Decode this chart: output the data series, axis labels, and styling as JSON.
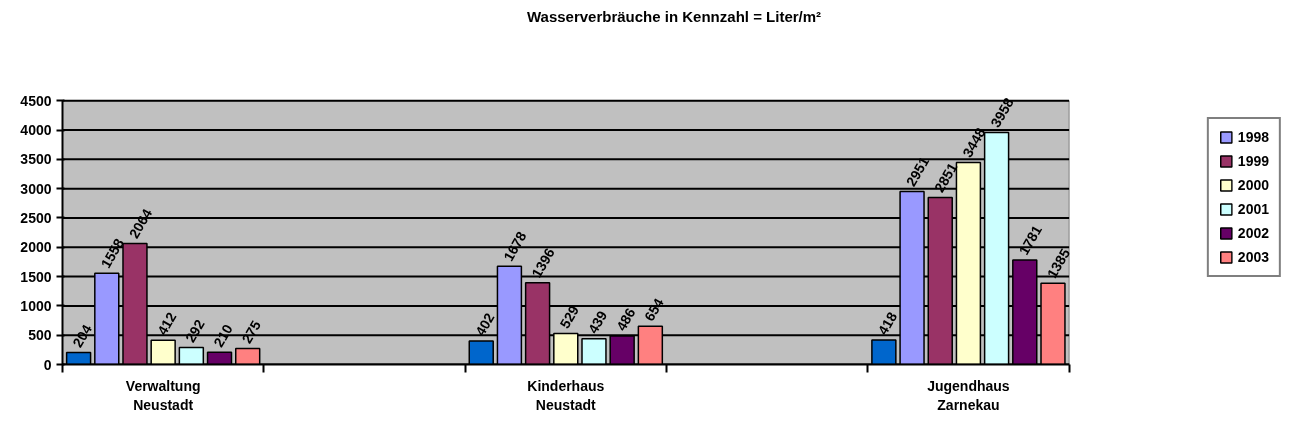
{
  "chart_data": {
    "type": "bar",
    "title": "Wasserverbräuche in Kennzahl = Liter/m²",
    "categories": [
      "Verwaltung Neustadt",
      null,
      "Kinderhaus Neustadt",
      null,
      "Jugendhaus Zarnekau"
    ],
    "series": [
      {
        "color": "#0066cc",
        "values": [
          204,
          null,
          402,
          null,
          418
        ]
      },
      {
        "name": "1998",
        "color": "#9999ff",
        "values": [
          1558,
          null,
          1678,
          null,
          2951
        ]
      },
      {
        "name": "1999",
        "color": "#993366",
        "values": [
          2064,
          null,
          1396,
          null,
          2851
        ]
      },
      {
        "name": "2000",
        "color": "#ffffcc",
        "values": [
          412,
          null,
          529,
          null,
          3448
        ]
      },
      {
        "name": "2001",
        "color": "#ccffff",
        "values": [
          292,
          null,
          439,
          null,
          3958
        ]
      },
      {
        "name": "2002",
        "color": "#660066",
        "values": [
          210,
          null,
          486,
          null,
          1781
        ]
      },
      {
        "name": "2003",
        "color": "#ff8080",
        "values": [
          275,
          null,
          654,
          null,
          1385
        ]
      }
    ],
    "ylim": [
      0,
      4500
    ],
    "yticks": [
      0,
      500,
      1000,
      1500,
      2000,
      2500,
      3000,
      3500,
      4000,
      4500
    ],
    "grid": "y",
    "legend": "right",
    "data_labels": true
  }
}
